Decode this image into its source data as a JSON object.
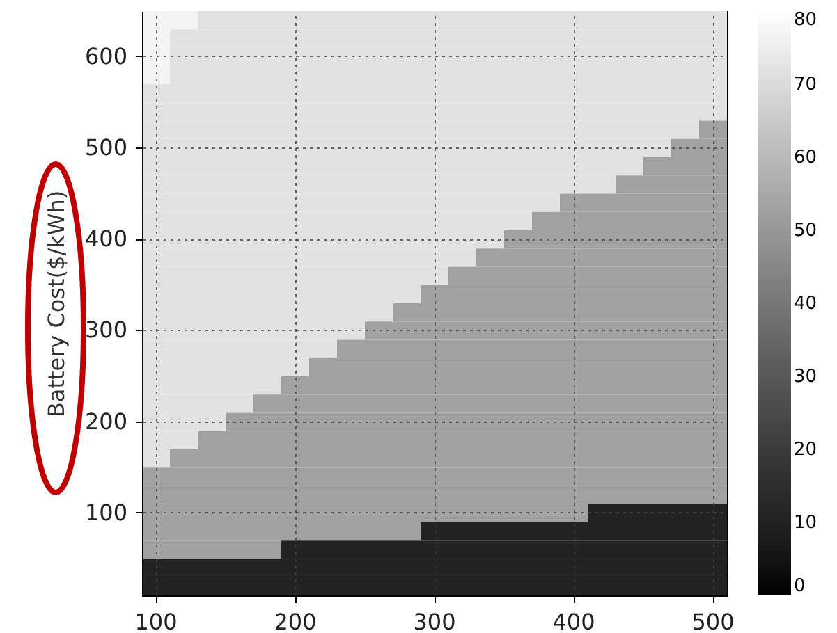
{
  "chart_data": {
    "type": "heatmap",
    "ylabel": "Battery Cost($/kWh)",
    "categories": [
      "100",
      null,
      null,
      null,
      null,
      "200",
      null,
      null,
      null,
      null,
      "300",
      null,
      null,
      null,
      null,
      "400",
      null,
      null,
      null,
      null,
      "500"
    ],
    "y_categories": [
      null,
      null,
      "600",
      null,
      null,
      null,
      null,
      "500",
      null,
      null,
      null,
      null,
      "400",
      null,
      null,
      null,
      null,
      "300",
      null,
      null,
      null,
      null,
      "200",
      null,
      null,
      null,
      null,
      "100",
      null,
      null,
      null,
      null
    ],
    "clim": [
      0,
      80
    ],
    "cticks": [
      0,
      10,
      20,
      30,
      40,
      50,
      60,
      70,
      80
    ],
    "grid": true,
    "cells": [
      [
        77,
        77,
        72,
        72,
        72,
        72,
        72,
        72,
        72,
        72,
        72,
        72,
        72,
        72,
        72,
        72,
        72,
        72,
        72,
        72,
        72
      ],
      [
        77,
        72,
        72,
        72,
        72,
        72,
        72,
        72,
        72,
        72,
        72,
        72,
        72,
        72,
        72,
        72,
        72,
        72,
        72,
        72,
        72
      ],
      [
        77,
        72,
        72,
        72,
        72,
        72,
        72,
        72,
        72,
        72,
        72,
        72,
        72,
        72,
        72,
        72,
        72,
        72,
        72,
        72,
        72
      ],
      [
        77,
        72,
        72,
        72,
        72,
        72,
        72,
        72,
        72,
        72,
        72,
        72,
        72,
        72,
        72,
        72,
        72,
        72,
        72,
        72,
        72
      ],
      [
        72,
        72,
        72,
        72,
        72,
        72,
        72,
        72,
        72,
        72,
        72,
        72,
        72,
        72,
        72,
        72,
        72,
        72,
        72,
        72,
        72
      ],
      [
        72,
        72,
        72,
        72,
        72,
        72,
        72,
        72,
        72,
        72,
        72,
        72,
        72,
        72,
        72,
        72,
        72,
        72,
        72,
        72,
        72
      ],
      [
        72,
        72,
        72,
        72,
        72,
        72,
        72,
        72,
        72,
        72,
        72,
        72,
        72,
        72,
        72,
        72,
        72,
        72,
        72,
        72,
        53
      ],
      [
        72,
        72,
        72,
        72,
        72,
        72,
        72,
        72,
        72,
        72,
        72,
        72,
        72,
        72,
        72,
        72,
        72,
        72,
        72,
        53,
        53
      ],
      [
        72,
        72,
        72,
        72,
        72,
        72,
        72,
        72,
        72,
        72,
        72,
        72,
        72,
        72,
        72,
        72,
        72,
        72,
        53,
        53,
        53
      ],
      [
        72,
        72,
        72,
        72,
        72,
        72,
        72,
        72,
        72,
        72,
        72,
        72,
        72,
        72,
        72,
        72,
        72,
        53,
        53,
        53,
        53
      ],
      [
        72,
        72,
        72,
        72,
        72,
        72,
        72,
        72,
        72,
        72,
        72,
        72,
        72,
        72,
        72,
        53,
        53,
        53,
        53,
        53,
        53
      ],
      [
        72,
        72,
        72,
        72,
        72,
        72,
        72,
        72,
        72,
        72,
        72,
        72,
        72,
        72,
        53,
        53,
        53,
        53,
        53,
        53,
        53
      ],
      [
        72,
        72,
        72,
        72,
        72,
        72,
        72,
        72,
        72,
        72,
        72,
        72,
        72,
        53,
        53,
        53,
        53,
        53,
        53,
        53,
        53
      ],
      [
        72,
        72,
        72,
        72,
        72,
        72,
        72,
        72,
        72,
        72,
        72,
        72,
        53,
        53,
        53,
        53,
        53,
        53,
        53,
        53,
        53
      ],
      [
        72,
        72,
        72,
        72,
        72,
        72,
        72,
        72,
        72,
        72,
        72,
        53,
        53,
        53,
        53,
        53,
        53,
        53,
        53,
        53,
        53
      ],
      [
        72,
        72,
        72,
        72,
        72,
        72,
        72,
        72,
        72,
        72,
        53,
        53,
        53,
        53,
        53,
        53,
        53,
        53,
        53,
        53,
        53
      ],
      [
        72,
        72,
        72,
        72,
        72,
        72,
        72,
        72,
        72,
        53,
        53,
        53,
        53,
        53,
        53,
        53,
        53,
        53,
        53,
        53,
        53
      ],
      [
        72,
        72,
        72,
        72,
        72,
        72,
        72,
        72,
        53,
        53,
        53,
        53,
        53,
        53,
        53,
        53,
        53,
        53,
        53,
        53,
        53
      ],
      [
        72,
        72,
        72,
        72,
        72,
        72,
        72,
        53,
        53,
        53,
        53,
        53,
        53,
        53,
        53,
        53,
        53,
        53,
        53,
        53,
        53
      ],
      [
        72,
        72,
        72,
        72,
        72,
        72,
        53,
        53,
        53,
        53,
        53,
        53,
        53,
        53,
        53,
        53,
        53,
        53,
        53,
        53,
        53
      ],
      [
        72,
        72,
        72,
        72,
        72,
        53,
        53,
        53,
        53,
        53,
        53,
        53,
        53,
        53,
        53,
        53,
        53,
        53,
        53,
        53,
        53
      ],
      [
        72,
        72,
        72,
        72,
        53,
        53,
        53,
        53,
        53,
        53,
        53,
        53,
        53,
        53,
        53,
        53,
        53,
        53,
        53,
        53,
        53
      ],
      [
        72,
        72,
        72,
        53,
        53,
        53,
        53,
        53,
        53,
        53,
        53,
        53,
        53,
        53,
        53,
        53,
        53,
        53,
        53,
        53,
        53
      ],
      [
        72,
        72,
        53,
        53,
        53,
        53,
        53,
        53,
        53,
        53,
        53,
        53,
        53,
        53,
        53,
        53,
        53,
        53,
        53,
        53,
        53
      ],
      [
        72,
        53,
        53,
        53,
        53,
        53,
        53,
        53,
        53,
        53,
        53,
        53,
        53,
        53,
        53,
        53,
        53,
        53,
        53,
        53,
        53
      ],
      [
        53,
        53,
        53,
        53,
        53,
        53,
        53,
        53,
        53,
        53,
        53,
        53,
        53,
        53,
        53,
        53,
        53,
        53,
        53,
        53,
        53
      ],
      [
        53,
        53,
        53,
        53,
        53,
        53,
        53,
        53,
        53,
        53,
        53,
        53,
        53,
        53,
        53,
        53,
        53,
        53,
        53,
        53,
        53
      ],
      [
        53,
        53,
        53,
        53,
        53,
        53,
        53,
        53,
        53,
        53,
        53,
        53,
        53,
        53,
        53,
        53,
        11,
        11,
        11,
        11,
        11
      ],
      [
        53,
        53,
        53,
        53,
        53,
        53,
        53,
        53,
        53,
        53,
        11,
        11,
        11,
        11,
        11,
        11,
        11,
        11,
        11,
        11,
        11
      ],
      [
        53,
        53,
        53,
        53,
        53,
        11,
        11,
        11,
        11,
        11,
        11,
        11,
        11,
        11,
        11,
        11,
        11,
        11,
        11,
        11,
        11
      ],
      [
        11,
        11,
        11,
        11,
        11,
        11,
        11,
        11,
        11,
        11,
        11,
        11,
        11,
        11,
        11,
        11,
        11,
        11,
        11,
        11,
        11
      ],
      [
        11,
        11,
        11,
        11,
        11,
        11,
        11,
        11,
        11,
        11,
        11,
        11,
        11,
        11,
        11,
        11,
        11,
        11,
        11,
        11,
        11
      ]
    ]
  }
}
